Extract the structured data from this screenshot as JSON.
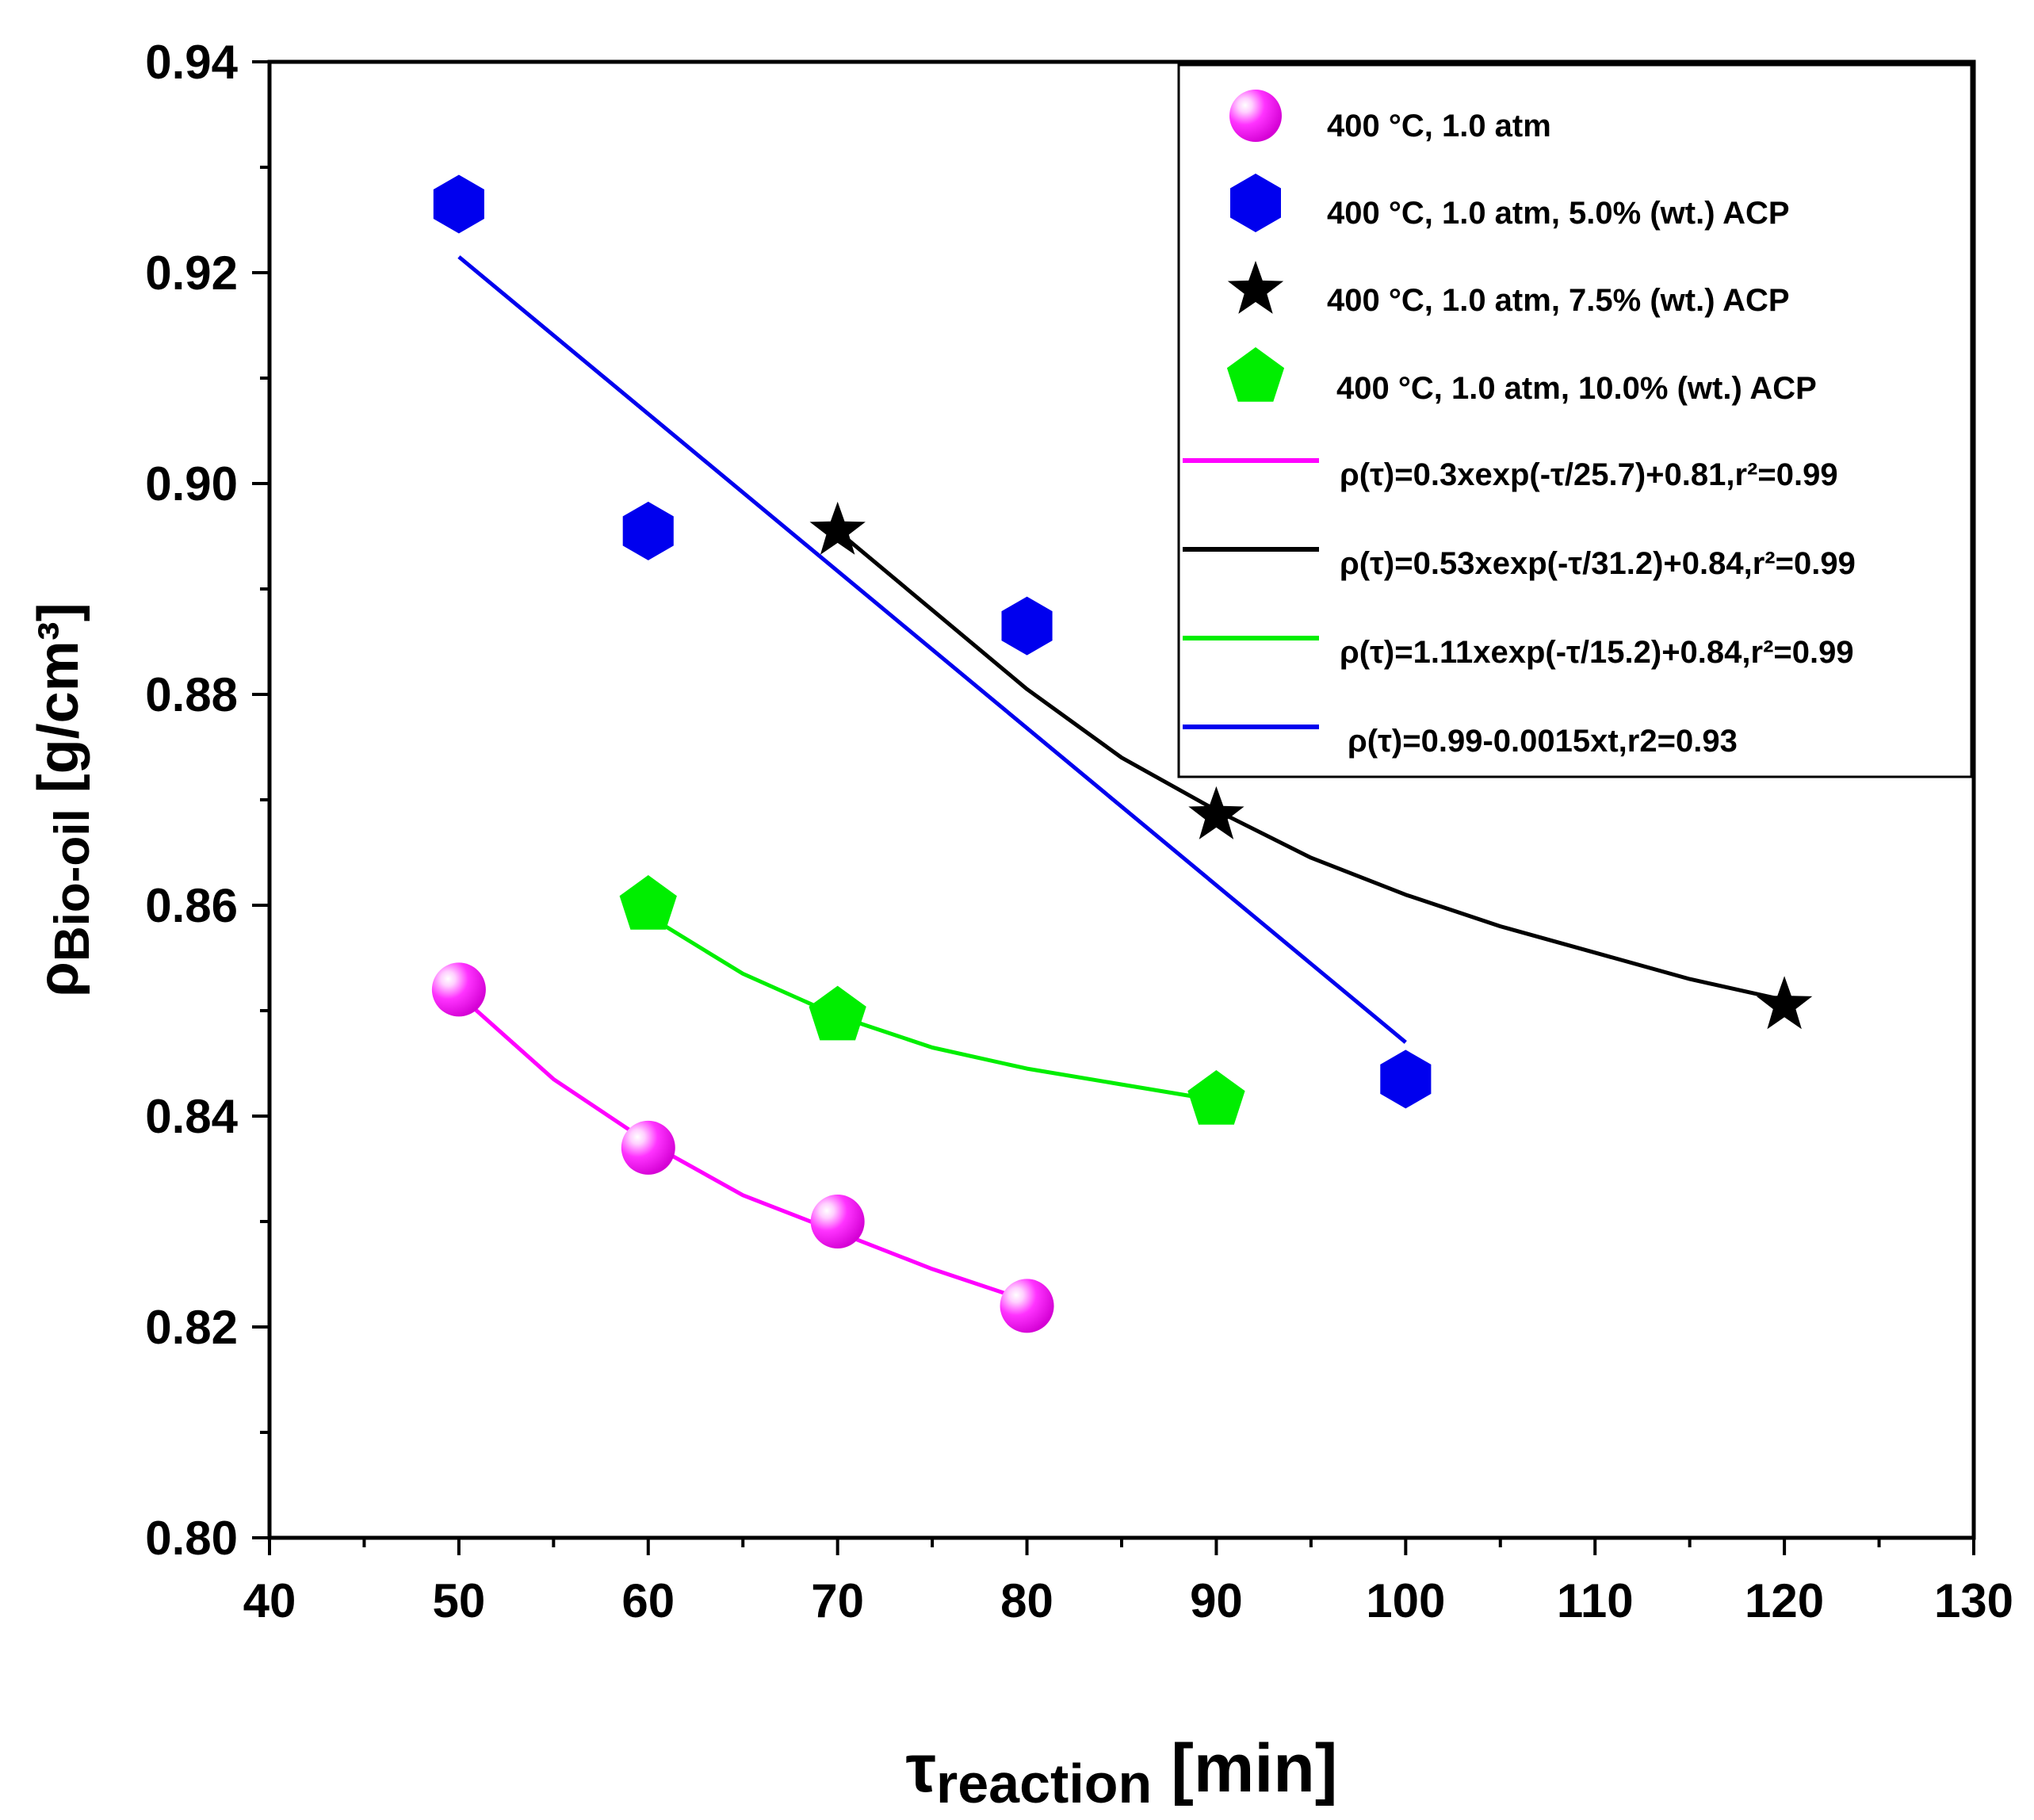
{
  "chart_data": {
    "type": "scatter",
    "xlabel": {
      "main": "τ",
      "sub": "reaction",
      "unit": " [min]"
    },
    "ylabel": {
      "main": "ρ",
      "sub": "Bio-oil",
      "unit": " [g/cm³]"
    },
    "xlim": [
      40,
      130
    ],
    "ylim": [
      0.8,
      0.94
    ],
    "xticks": [
      40,
      50,
      60,
      70,
      80,
      90,
      100,
      110,
      120,
      130
    ],
    "xtick_labels": [
      "40",
      "50",
      "60",
      "70",
      "80",
      "90",
      "100",
      "110",
      "120",
      "130"
    ],
    "yticks": [
      0.8,
      0.82,
      0.84,
      0.86,
      0.88,
      0.9,
      0.92,
      0.94
    ],
    "ytick_labels": [
      "0.80",
      "0.82",
      "0.84",
      "0.86",
      "0.88",
      "0.90",
      "0.92",
      "0.94"
    ],
    "legend_position": "top-right",
    "series": [
      {
        "name": "400 °C, 1.0 atm",
        "marker": "sphere",
        "color": "#ff00ff",
        "x": [
          50,
          60,
          70,
          80
        ],
        "y": [
          0.852,
          0.837,
          0.83,
          0.822
        ]
      },
      {
        "name": "400 °C, 1.0 atm, 5.0% (wt.) ACP",
        "marker": "hexagon",
        "color": "#0000ee",
        "x": [
          50,
          60,
          80,
          100
        ],
        "y": [
          0.9265,
          0.8955,
          0.8865,
          0.8435
        ]
      },
      {
        "name": "400 °C, 1.0 atm, 7.5% (wt.) ACP",
        "marker": "star",
        "color": "#000000",
        "x": [
          70,
          90,
          120
        ],
        "y": [
          0.8955,
          0.8685,
          0.8505
        ]
      },
      {
        "name": "400 °C, 1.0 atm, 10.0% (wt.) ACP",
        "marker": "pentagon",
        "color": "#00ee00",
        "x": [
          60,
          70,
          90
        ],
        "y": [
          0.86,
          0.8495,
          0.8415
        ]
      }
    ],
    "fits": [
      {
        "label": "ρ(τ)=0.3xexp(-τ/25.7)+0.81,r²=0.99",
        "color": "#ff00ff",
        "x": [
          50,
          55,
          60,
          65,
          70,
          75,
          80
        ],
        "y": [
          0.8515,
          0.8435,
          0.8375,
          0.8325,
          0.829,
          0.8255,
          0.8225
        ]
      },
      {
        "label": "ρ(τ)=0.53xexp(-τ/31.2)+0.84,r²=0.99",
        "color": "#000000",
        "x": [
          70,
          75,
          80,
          85,
          90,
          95,
          100,
          105,
          110,
          115,
          120
        ],
        "y": [
          0.8955,
          0.888,
          0.8805,
          0.874,
          0.869,
          0.8645,
          0.861,
          0.858,
          0.8555,
          0.853,
          0.851
        ]
      },
      {
        "label": "ρ(τ)=1.11xexp(-τ/15.2)+0.84,r²=0.99",
        "color": "#00ee00",
        "x": [
          60,
          65,
          70,
          75,
          80,
          85,
          90
        ],
        "y": [
          0.859,
          0.8535,
          0.8495,
          0.8465,
          0.8445,
          0.843,
          0.8415
        ]
      },
      {
        "label": "ρ(τ)=0.99-0.0015xt,r2=0.93",
        "color": "#0000ee",
        "x": [
          50,
          100
        ],
        "y": [
          0.9215,
          0.847
        ]
      }
    ]
  }
}
